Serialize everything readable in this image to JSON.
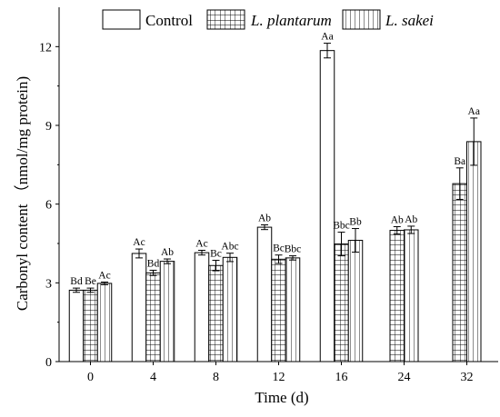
{
  "chart_data": {
    "type": "bar",
    "categories": [
      "0",
      "4",
      "8",
      "12",
      "16",
      "24",
      "32"
    ],
    "xlabel": "Time (d)",
    "ylabel": "Carbonyl content （nmol/mg protein)",
    "ylim": [
      0,
      13.5
    ],
    "yticks": [
      "0",
      "3",
      "6",
      "9",
      "12"
    ],
    "legend_position": "top",
    "series": [
      {
        "name": "Control",
        "pattern": "plain",
        "values": [
          2.72,
          4.12,
          4.15,
          5.12,
          11.85,
          null,
          null
        ],
        "errors": [
          0.08,
          0.17,
          0.09,
          0.09,
          0.28,
          null,
          null
        ],
        "labels": [
          "Bd",
          "Ac",
          "Ac",
          "Ab",
          "Aa",
          "",
          ""
        ]
      },
      {
        "name": "L. plantarum",
        "pattern": "grid",
        "values": [
          2.72,
          3.38,
          3.66,
          3.9,
          4.48,
          5.0,
          6.78
        ],
        "errors": [
          0.08,
          0.1,
          0.2,
          0.16,
          0.45,
          0.14,
          0.6
        ],
        "labels": [
          "Be",
          "Bd",
          "Bc",
          "Bc",
          "Bbc",
          "Ab",
          "Ba"
        ]
      },
      {
        "name": "L. sakei",
        "pattern": "vertical",
        "values": [
          2.98,
          3.82,
          3.97,
          3.95,
          4.62,
          5.02,
          8.38
        ],
        "errors": [
          0.05,
          0.09,
          0.16,
          0.08,
          0.45,
          0.14,
          0.9
        ],
        "labels": [
          "Ac",
          "Ab",
          "Abc",
          "Bbc",
          "Bb",
          "Ab",
          "Aa"
        ]
      }
    ],
    "colors": {
      "bar_fill": "#ffffff",
      "stroke": "#000000"
    }
  }
}
